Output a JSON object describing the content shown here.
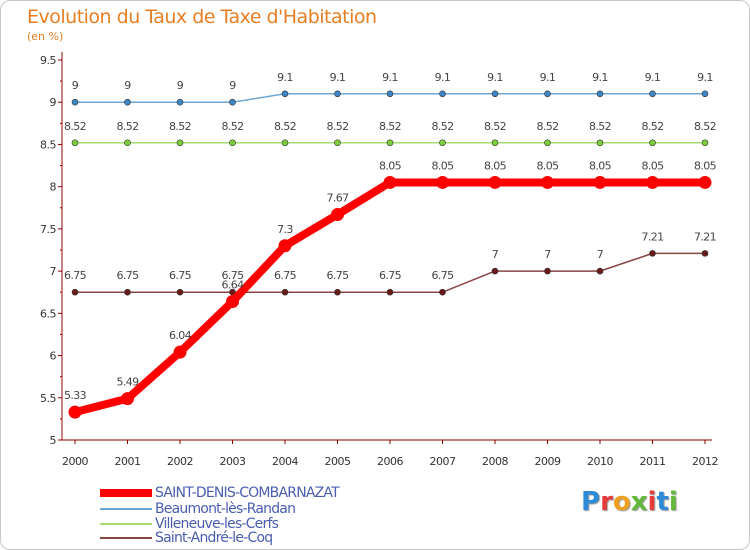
{
  "title": "Evolution du Taux de Taxe d'Habitation",
  "subtitle": "(en %)",
  "brand": "Proxiti",
  "colors": {
    "title": "#e67e22",
    "axis": "#8c0000",
    "legend_text": "#4a5db0"
  },
  "chart_data": {
    "type": "line",
    "title": "Evolution du Taux de Taxe d'Habitation",
    "ylabel": "(en %)",
    "xlabel": "",
    "ylim": [
      5,
      9.5
    ],
    "yticks": [
      "5",
      "5.5",
      "6",
      "6.5",
      "7",
      "7.5",
      "8",
      "8.5",
      "9",
      "9.5"
    ],
    "categories": [
      "2000",
      "2001",
      "2002",
      "2003",
      "2004",
      "2005",
      "2006",
      "2007",
      "2008",
      "2009",
      "2010",
      "2011",
      "2012"
    ],
    "series": [
      {
        "name": "Beaumont-lès-Randan",
        "color": "#6ea6d2",
        "marker": "#3d86c6",
        "values": [
          9,
          9,
          9,
          9,
          9.1,
          9.1,
          9.1,
          9.1,
          9.1,
          9.1,
          9.1,
          9.1,
          9.1
        ],
        "labels": [
          "9",
          "9",
          "9",
          "9",
          "9.1",
          "9.1",
          "9.1",
          "9.1",
          "9.1",
          "9.1",
          "9.1",
          "9.1",
          "9.1"
        ]
      },
      {
        "name": "Villeneuve-les-Cerfs",
        "color": "#a5de70",
        "marker": "#7ccf3a",
        "values": [
          8.52,
          8.52,
          8.52,
          8.52,
          8.52,
          8.52,
          8.52,
          8.52,
          8.52,
          8.52,
          8.52,
          8.52,
          8.52
        ],
        "labels": [
          "8.52",
          "8.52",
          "8.52",
          "8.52",
          "8.52",
          "8.52",
          "8.52",
          "8.52",
          "8.52",
          "8.52",
          "8.52",
          "8.52",
          "8.52"
        ]
      },
      {
        "name": "Saint-André-le-Coq",
        "color": "#8a4444",
        "marker": "#6b1a1a",
        "values": [
          6.75,
          6.75,
          6.75,
          6.75,
          6.75,
          6.75,
          6.75,
          6.75,
          7,
          7,
          7,
          7.21,
          7.21
        ],
        "labels": [
          "6.75",
          "6.75",
          "6.75",
          "6.75",
          "6.75",
          "6.75",
          "6.75",
          "6.75",
          "7",
          "7",
          "7",
          "7.21",
          "7.21"
        ]
      },
      {
        "name": "SAINT-DENIS-COMBARNAZAT",
        "color": "#ff0000",
        "marker": "#ff0000",
        "values": [
          5.33,
          5.49,
          6.04,
          6.64,
          7.3,
          7.67,
          8.05,
          8.05,
          8.05,
          8.05,
          8.05,
          8.05,
          8.05
        ],
        "labels": [
          "5.33",
          "5.49",
          "6.04",
          "6.64",
          "7.3",
          "7.67",
          "8.05",
          "8.05",
          "8.05",
          "8.05",
          "8.05",
          "8.05",
          "8.05"
        ]
      }
    ],
    "legend": [
      {
        "name": "SAINT-DENIS-COMBARNAZAT",
        "color": "#ff0000",
        "thick": true
      },
      {
        "name": "Beaumont-lès-Randan",
        "color": "#6ea6d2",
        "thick": false
      },
      {
        "name": "Villeneuve-les-Cerfs",
        "color": "#a5de70",
        "thick": false
      },
      {
        "name": "Saint-André-le-Coq",
        "color": "#8a4444",
        "thick": false
      }
    ]
  }
}
